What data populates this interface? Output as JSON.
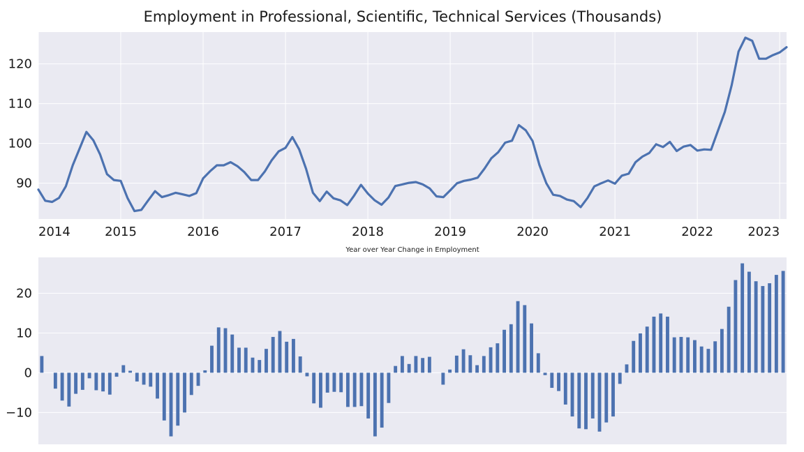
{
  "chart_data": [
    {
      "type": "line",
      "title": "Employment in Professional, Scientific, Technical Services (Thousands)",
      "xlabel": "",
      "ylabel": "",
      "x_start": "2014-01",
      "x_step": "month",
      "xlim": [
        "2014-01",
        "2023-02"
      ],
      "ylim": [
        81,
        128
      ],
      "yticks": [
        90,
        100,
        110,
        120
      ],
      "xticks": [
        "2014",
        "2015",
        "2016",
        "2017",
        "2018",
        "2019",
        "2020",
        "2021",
        "2022",
        "2023"
      ],
      "grid": true,
      "color": "#4c72b0",
      "series": [
        {
          "values": [
            88.4,
            85.6,
            85.3,
            86.3,
            89.2,
            94.5,
            98.7,
            102.9,
            100.8,
            97.2,
            92.3,
            90.8,
            90.6,
            86.2,
            83.0,
            83.3,
            85.7,
            88.0,
            86.5,
            87.0,
            87.6,
            87.2,
            86.8,
            87.5,
            91.2,
            93.0,
            94.5,
            94.5,
            95.3,
            94.3,
            92.8,
            90.8,
            90.8,
            93.0,
            95.8,
            98.0,
            98.9,
            101.6,
            98.5,
            93.6,
            87.6,
            85.5,
            87.9,
            86.2,
            85.7,
            84.5,
            86.9,
            89.6,
            87.4,
            85.7,
            84.6,
            86.4,
            89.3,
            89.7,
            90.1,
            90.3,
            89.7,
            88.7,
            86.7,
            86.5,
            88.2,
            90.0,
            90.6,
            90.9,
            91.4,
            93.7,
            96.3,
            97.8,
            100.2,
            100.7,
            104.6,
            103.3,
            100.6,
            94.6,
            90.0,
            87.1,
            86.8,
            85.9,
            85.5,
            84.0,
            86.3,
            89.2,
            90.0,
            90.7,
            89.9,
            91.9,
            92.4,
            95.3,
            96.7,
            97.6,
            99.8,
            99.1,
            100.4,
            98.1,
            99.2,
            99.6,
            98.2,
            98.5,
            98.4,
            103.2,
            107.9,
            114.6,
            123.1,
            126.6,
            125.8,
            121.3,
            121.3,
            122.2,
            122.9,
            124.2
          ]
        }
      ]
    },
    {
      "type": "bar",
      "title": "Year over Year Change in Employment",
      "xlabel": "",
      "ylabel": "",
      "x_start": "2014-01",
      "x_step": "month",
      "ylim": [
        -18,
        29
      ],
      "yticks": [
        -10,
        0,
        10,
        20
      ],
      "ytick_labels": [
        "−10",
        "0",
        "10",
        "20"
      ],
      "grid": true,
      "color": "#4c72b0",
      "series": [
        {
          "values": [
            4.2,
            0,
            -4.0,
            -7.0,
            -8.5,
            -5.3,
            -4.3,
            -1.4,
            -4.4,
            -4.7,
            -5.5,
            -1.0,
            1.9,
            0.5,
            -2.2,
            -3.0,
            -3.5,
            -6.5,
            -12.0,
            -16.0,
            -13.3,
            -10.0,
            -5.6,
            -3.3,
            0.6,
            6.8,
            11.4,
            11.2,
            9.6,
            6.3,
            6.3,
            3.8,
            3.2,
            6.0,
            9.0,
            10.5,
            7.8,
            8.5,
            4.1,
            -0.9,
            -7.7,
            -8.8,
            -5.0,
            -4.8,
            -4.9,
            -8.6,
            -8.6,
            -8.4,
            -11.5,
            -16.0,
            -13.8,
            -7.6,
            1.7,
            4.2,
            2.2,
            4.2,
            3.7,
            4.0,
            0,
            -3.0,
            0.8,
            4.3,
            5.9,
            4.4,
            1.9,
            4.2,
            6.4,
            7.4,
            10.8,
            12.2,
            18.0,
            17.0,
            12.4,
            4.9,
            -0.6,
            -3.8,
            -4.6,
            -8.0,
            -11.0,
            -14.0,
            -14.2,
            -11.5,
            -14.8,
            -12.5,
            -11.0,
            -2.8,
            2.1,
            8.0,
            9.9,
            11.6,
            14.1,
            14.9,
            14.1,
            8.9,
            9.0,
            8.9,
            8.2,
            6.6,
            6.0,
            7.9,
            11.0,
            16.6,
            23.3,
            27.5,
            25.4,
            23.0,
            21.8,
            22.5,
            24.6,
            25.6
          ]
        }
      ]
    }
  ]
}
